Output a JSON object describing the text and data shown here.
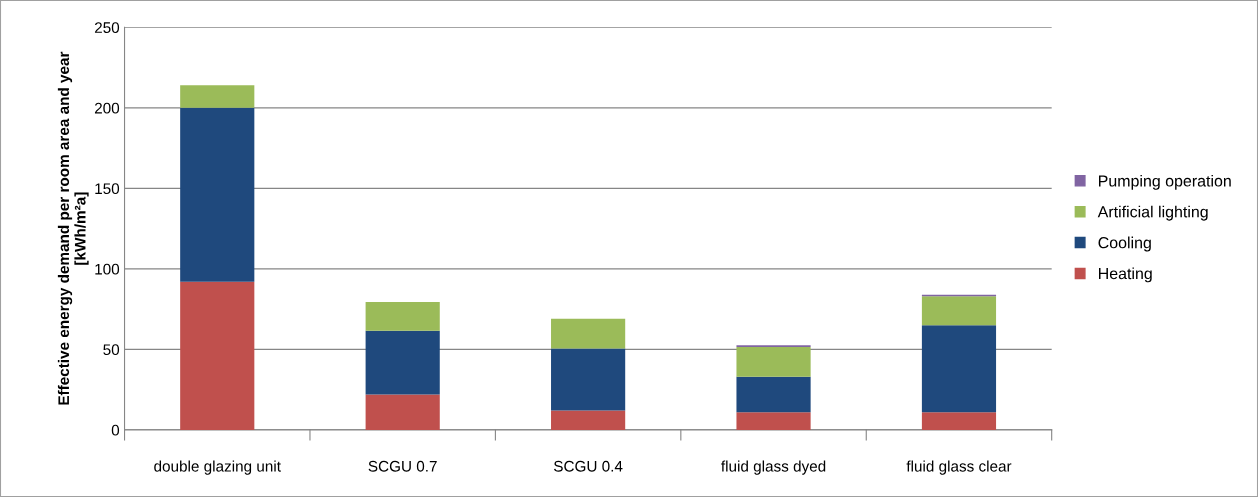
{
  "chart_data": {
    "type": "bar",
    "stacked": true,
    "categories": [
      "double glazing unit",
      "SCGU 0.7",
      "SCGU 0.4",
      "fluid glass dyed",
      "fluid glass clear"
    ],
    "ylabel": "Effective energy demand per room area and year\n[kWh/m²a]",
    "series": [
      {
        "name": "Heating",
        "color": "#c0504d",
        "values": [
          92,
          22,
          12,
          11,
          11
        ]
      },
      {
        "name": "Cooling",
        "color": "#1f497d",
        "values": [
          108,
          39.5,
          38.5,
          22,
          54
        ]
      },
      {
        "name": "Artificial lighting",
        "color": "#9bbb59",
        "values": [
          14,
          18,
          18.5,
          18.5,
          18
        ]
      },
      {
        "name": "Pumping operation",
        "color": "#8064a2",
        "values": [
          0,
          0,
          0,
          1,
          1
        ]
      }
    ],
    "ylim": [
      0,
      250
    ],
    "yticks": [
      0,
      50,
      100,
      150,
      200,
      250
    ],
    "grid": "y",
    "legend": "right"
  }
}
